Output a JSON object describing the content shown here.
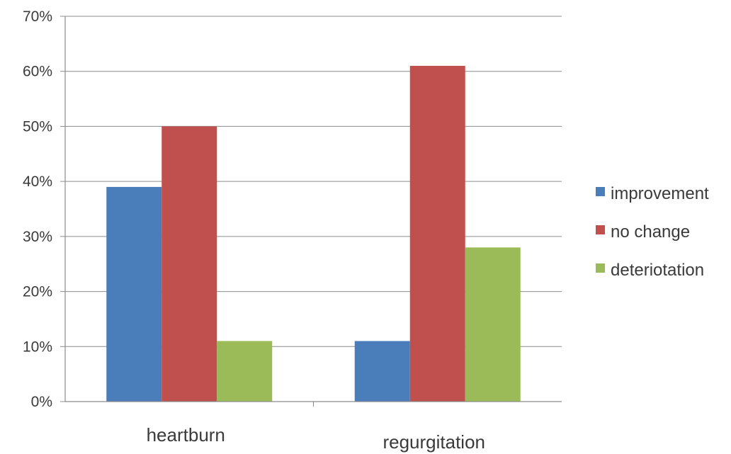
{
  "chart_data": {
    "type": "bar",
    "title": "",
    "xlabel": "",
    "ylabel": "",
    "categories": [
      "heartburn",
      "regurgitation"
    ],
    "series": [
      {
        "name": "improvement",
        "values": [
          39,
          11
        ],
        "color": "#4a7ebb"
      },
      {
        "name": "no change",
        "values": [
          50,
          61
        ],
        "color": "#c0504d"
      },
      {
        "name": "deteriotation",
        "values": [
          11,
          28
        ],
        "color": "#9bbb59"
      }
    ],
    "ylim": [
      0,
      70
    ],
    "y_ticks": [
      0,
      10,
      20,
      30,
      40,
      50,
      60,
      70
    ],
    "y_tick_labels": [
      "0%",
      "10%",
      "20%",
      "30%",
      "40%",
      "50%",
      "60%",
      "70%"
    ],
    "grid": true,
    "legend_position": "right"
  }
}
